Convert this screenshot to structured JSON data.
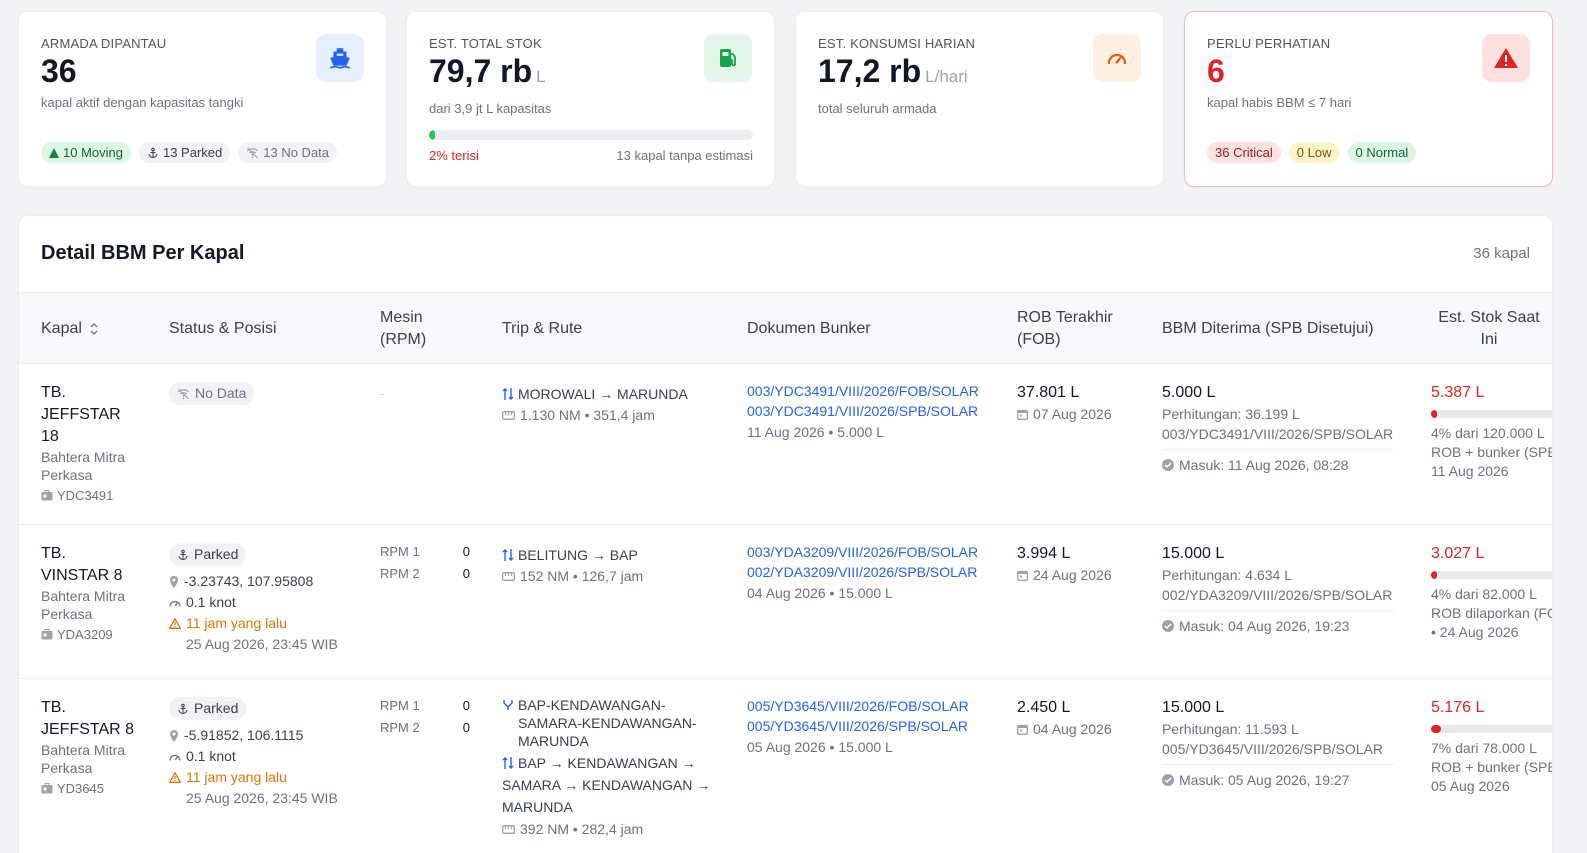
{
  "cards": {
    "fleet": {
      "label": "ARMADA DIPANTAU",
      "value": "36",
      "sub": "kapal aktif dengan kapasitas tangki",
      "pill_moving": "10 Moving",
      "pill_parked": "13 Parked",
      "pill_nodata": "13 No Data",
      "icon": "ship-icon"
    },
    "stock": {
      "label": "EST. TOTAL STOK",
      "value": "79,7 rb",
      "unit": "L",
      "sub": "dari 3,9 jt L kapasitas",
      "fill_percent": 2,
      "fill_label": "2% terisi",
      "note": "13 kapal tanpa estimasi",
      "icon": "fuel-pump-icon"
    },
    "consumption": {
      "label": "EST. KONSUMSI HARIAN",
      "value": "17,2 rb",
      "unit": "L/hari",
      "sub": "total seluruh armada",
      "icon": "gauge-icon"
    },
    "attention": {
      "label": "PERLU PERHATIAN",
      "value": "6",
      "sub": "kapal habis BBM ≤ 7 hari",
      "pill_critical": "36 Critical",
      "pill_low": "0 Low",
      "pill_normal": "0 Normal",
      "icon": "warning-icon"
    }
  },
  "panel": {
    "title": "Detail BBM Per Kapal",
    "count": "36 kapal",
    "headers": {
      "kapal": "Kapal",
      "status": "Status & Posisi",
      "mesin_1": "Mesin",
      "mesin_2": "(RPM)",
      "trip": "Trip & Rute",
      "dokumen": "Dokumen Bunker",
      "rob_1": "ROB Terakhir",
      "rob_2": "(FOB)",
      "bbm": "BBM Diterima (SPB Disetujui)",
      "est_1": "Est. Stok Saat",
      "est_2": "Ini"
    }
  },
  "rows": [
    {
      "name_1": "TB.",
      "name_2": "JEFFSTAR",
      "name_3": "18",
      "company_1": "Bahtera Mitra",
      "company_2": "Perkasa",
      "code": "YDC3491",
      "status": "No Data",
      "engine_dash": "-",
      "route": "MOROWALI → MARUNDA",
      "route_meta": "1.130 NM • 351,4 jam",
      "doc_1": "003/YDC3491/VIII/2026/FOB/SOLAR",
      "doc_2": "003/YDC3491/VIII/2026/SPB/SOLAR",
      "doc_meta": "11 Aug 2026 • 5.000 L",
      "rob": "37.801 L",
      "rob_date": "07 Aug 2026",
      "bbm": "5.000 L",
      "calc": "Perhitungan: 36.199 L",
      "calc_doc": "003/YDC3491/VIII/2026/SPB/SOLAR",
      "masuk": "Masuk: 11 Aug 2026, 08:28",
      "stock": "5.387 L",
      "stock_percent": 4,
      "stock_meta_1": "4% dari 120.000 L",
      "stock_meta_2": "ROB + bunker (SPB)",
      "stock_meta_3": "11 Aug 2026"
    },
    {
      "name_1": "TB.",
      "name_2": "VINSTAR 8",
      "company_1": "Bahtera Mitra",
      "company_2": "Perkasa",
      "code": "YDA3209",
      "status": "Parked",
      "coords": "-3.23743, 107.95808",
      "speed": "0.1 knot",
      "ago": "11 jam yang lalu",
      "timestamp": "25 Aug 2026, 23:45 WIB",
      "rpm1_label": "RPM 1",
      "rpm1_val": "0",
      "rpm2_label": "RPM 2",
      "rpm2_val": "0",
      "route": "BELITUNG → BAP",
      "route_meta": "152 NM • 126,7 jam",
      "doc_1": "003/YDA3209/VIII/2026/FOB/SOLAR",
      "doc_2": "002/YDA3209/VIII/2026/SPB/SOLAR",
      "doc_meta": "04 Aug 2026 • 15.000 L",
      "rob": "3.994 L",
      "rob_date": "24 Aug 2026",
      "bbm": "15.000 L",
      "calc": "Perhitungan: 4.634 L",
      "calc_doc": "002/YDA3209/VIII/2026/SPB/SOLAR",
      "masuk": "Masuk: 04 Aug 2026, 19:23",
      "stock": "3.027 L",
      "stock_percent": 4,
      "stock_meta_1": "4% dari 82.000 L",
      "stock_meta_2": "ROB dilaporkan (FO",
      "stock_meta_3": "• 24 Aug 2026"
    },
    {
      "name_1": "TB.",
      "name_2": "JEFFSTAR 8",
      "company_1": "Bahtera Mitra",
      "company_2": "Perkasa",
      "code": "YD3645",
      "status": "Parked",
      "coords": "-5.91852, 106.1115",
      "speed": "0.1 knot",
      "ago": "11 jam yang lalu",
      "timestamp": "25 Aug 2026, 23:45 WIB",
      "rpm1_label": "RPM 1",
      "rpm1_val": "0",
      "rpm2_label": "RPM 2",
      "rpm2_val": "0",
      "route_multi_1": "BAP-KENDAWANGAN-",
      "route_multi_2": "SAMARA-KENDAWANGAN-",
      "route_multi_3": "MARUNDA",
      "route_seq_1": "BAP → KENDAWANGAN →",
      "route_seq_2": "SAMARA → KENDAWANGAN →",
      "route_seq_3": "MARUNDA",
      "route_meta": "392 NM • 282,4 jam",
      "doc_1": "005/YD3645/VIII/2026/FOB/SOLAR",
      "doc_2": "005/YD3645/VIII/2026/SPB/SOLAR",
      "doc_meta": "05 Aug 2026 • 15.000 L",
      "rob": "2.450 L",
      "rob_date": "04 Aug 2026",
      "bbm": "15.000 L",
      "calc": "Perhitungan: 11.593 L",
      "calc_doc": "005/YD3645/VIII/2026/SPB/SOLAR",
      "masuk": "Masuk: 05 Aug 2026, 19:27",
      "stock": "5.176 L",
      "stock_percent": 7,
      "stock_meta_1": "7% dari 78.000 L",
      "stock_meta_2": "ROB + bunker (SPB)",
      "stock_meta_3": "05 Aug 2026"
    }
  ]
}
